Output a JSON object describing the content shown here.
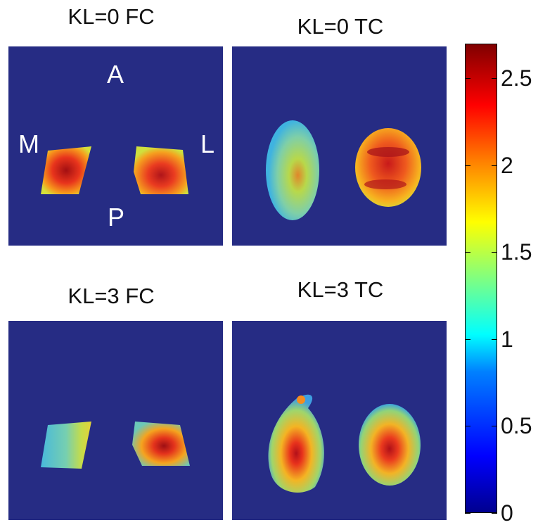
{
  "panels": [
    {
      "title": "KL=0 FC"
    },
    {
      "title": "KL=0 TC"
    },
    {
      "title": "KL=3 FC"
    },
    {
      "title": "KL=3 TC"
    }
  ],
  "orientation": {
    "anterior": "A",
    "posterior": "P",
    "medial": "M",
    "lateral": "L"
  },
  "colorbar": {
    "ticks": [
      "0",
      "0.5",
      "1",
      "1.5",
      "2",
      "2.5"
    ],
    "min": 0,
    "max": 2.7,
    "colormap": "jet"
  },
  "colors": {
    "background": "#262c84"
  },
  "chart_data": {
    "type": "heatmap",
    "layout": "2x2 panels",
    "titles": [
      "KL=0 FC",
      "KL=0 TC",
      "KL=3 FC",
      "KL=3 TC"
    ],
    "colorbar_range": [
      0,
      2.7
    ],
    "colorbar_ticks": [
      0,
      0.5,
      1,
      1.5,
      2,
      2.5
    ],
    "orientation_labels": [
      "A",
      "P",
      "M",
      "L"
    ]
  }
}
